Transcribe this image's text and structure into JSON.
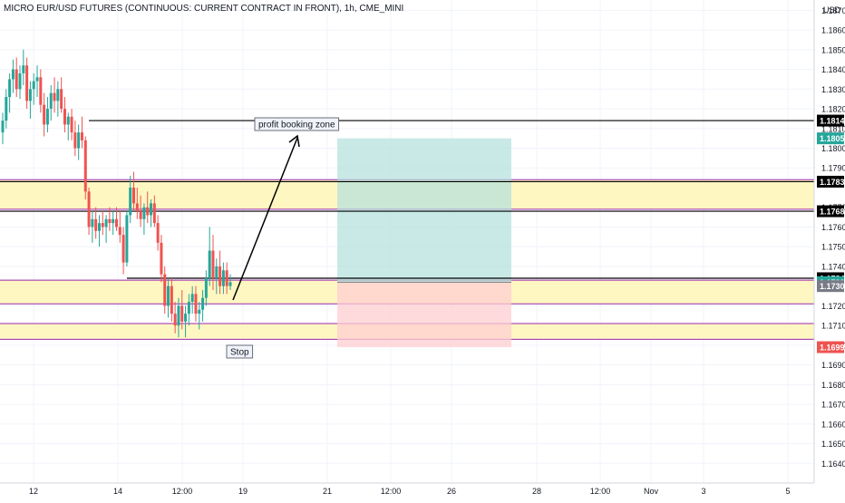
{
  "title": "MICRO EUR/USD FUTURES (CONTINUOUS: CURRENT CONTRACT IN FRONT), 1h, CME_MINI",
  "currency": "USD",
  "colors": {
    "up": "#26a69a",
    "down": "#ef5350",
    "zone_fill": "#fff7c2",
    "zone_border": "#9c27b0",
    "target_fill": "#b2dfdb",
    "stop_fill": "#ffcdd2",
    "grid": "#f0f3fa",
    "line": "#000000"
  },
  "annotations": {
    "profit_label": "profit booking zone",
    "stop_label": "Stop"
  },
  "chart_data": {
    "type": "candlestick",
    "title": "MICRO EUR/USD FUTURES (CONTINUOUS: CURRENT CONTRACT IN FRONT), 1h, CME_MINI",
    "ylim": [
      1.1636,
      1.1872
    ],
    "y_ticks": [
      1.164,
      1.165,
      1.166,
      1.167,
      1.168,
      1.169,
      1.17,
      1.171,
      1.172,
      1.174,
      1.175,
      1.176,
      1.177,
      1.179,
      1.18,
      1.181,
      1.182,
      1.183,
      1.184,
      1.185,
      1.186,
      1.187
    ],
    "x_ticks": [
      "12",
      "14",
      "12:00",
      "19",
      "21",
      "12:00",
      "26",
      "28",
      "12:00",
      "Nov",
      "3",
      "5"
    ],
    "horizontal_levels": [
      {
        "price": 1.1814,
        "label": "1.1814",
        "style": "dark"
      },
      {
        "price": 1.1783,
        "label": "1.1783",
        "style": "dark"
      },
      {
        "price": 1.1768,
        "label": "1.1768",
        "style": "dark"
      },
      {
        "price": 1.1734,
        "label": "1.1734",
        "style": "dark"
      }
    ],
    "zones": [
      {
        "top": 1.1784,
        "bottom": 1.1769
      },
      {
        "top": 1.1733,
        "bottom": 1.1721
      },
      {
        "top": 1.1711,
        "bottom": 1.1703
      }
    ],
    "position": {
      "entry": 1.1732,
      "target": 1.1805,
      "stop": 1.1699
    },
    "price_badges": [
      {
        "label": "1.1805",
        "color": "#26a69a"
      },
      {
        "label": "1.1732",
        "color": "#26a69a"
      },
      {
        "label": "1.1730",
        "color": "#787b86"
      },
      {
        "label": "1.1699",
        "color": "#ef5350"
      }
    ],
    "candles": [
      [
        1.1808,
        1.1818,
        1.1802,
        1.1814
      ],
      [
        1.1814,
        1.183,
        1.181,
        1.1826
      ],
      [
        1.1826,
        1.1838,
        1.1818,
        1.1835
      ],
      [
        1.1835,
        1.1845,
        1.1828,
        1.184
      ],
      [
        1.184,
        1.1846,
        1.1826,
        1.183
      ],
      [
        1.183,
        1.1842,
        1.1825,
        1.1838
      ],
      [
        1.1838,
        1.185,
        1.1832,
        1.1842
      ],
      [
        1.1842,
        1.1846,
        1.182,
        1.1824
      ],
      [
        1.1824,
        1.1834,
        1.1815,
        1.183
      ],
      [
        1.183,
        1.1838,
        1.1822,
        1.1834
      ],
      [
        1.1834,
        1.1842,
        1.1826,
        1.1836
      ],
      [
        1.1836,
        1.184,
        1.1818,
        1.1822
      ],
      [
        1.1822,
        1.1828,
        1.1806,
        1.1812
      ],
      [
        1.1812,
        1.1826,
        1.1808,
        1.182
      ],
      [
        1.182,
        1.1832,
        1.1814,
        1.1828
      ],
      [
        1.1828,
        1.1836,
        1.1818,
        1.1824
      ],
      [
        1.1824,
        1.1834,
        1.1816,
        1.183
      ],
      [
        1.183,
        1.1836,
        1.1818,
        1.182
      ],
      [
        1.182,
        1.1826,
        1.1808,
        1.1812
      ],
      [
        1.1812,
        1.1818,
        1.1804,
        1.1816
      ],
      [
        1.1816,
        1.182,
        1.1804,
        1.1808
      ],
      [
        1.1808,
        1.1814,
        1.1796,
        1.18
      ],
      [
        1.18,
        1.1812,
        1.1794,
        1.1808
      ],
      [
        1.1808,
        1.1816,
        1.18,
        1.1804
      ],
      [
        1.1804,
        1.1806,
        1.1774,
        1.1778
      ],
      [
        1.1778,
        1.178,
        1.1756,
        1.176
      ],
      [
        1.176,
        1.1768,
        1.1752,
        1.1764
      ],
      [
        1.1764,
        1.177,
        1.1754,
        1.1758
      ],
      [
        1.1758,
        1.1766,
        1.175,
        1.1762
      ],
      [
        1.1762,
        1.1768,
        1.1756,
        1.176
      ],
      [
        1.176,
        1.1766,
        1.1752,
        1.1764
      ],
      [
        1.1764,
        1.177,
        1.1758,
        1.1762
      ],
      [
        1.1762,
        1.1768,
        1.1756,
        1.1764
      ],
      [
        1.1764,
        1.177,
        1.1758,
        1.176
      ],
      [
        1.176,
        1.1768,
        1.1752,
        1.1756
      ],
      [
        1.1756,
        1.176,
        1.1736,
        1.1742
      ],
      [
        1.1742,
        1.1768,
        1.174,
        1.1766
      ],
      [
        1.1766,
        1.1786,
        1.1762,
        1.178
      ],
      [
        1.178,
        1.1788,
        1.1768,
        1.1772
      ],
      [
        1.1772,
        1.178,
        1.1764,
        1.1768
      ],
      [
        1.1768,
        1.1776,
        1.176,
        1.1764
      ],
      [
        1.1764,
        1.1772,
        1.1756,
        1.177
      ],
      [
        1.177,
        1.1778,
        1.1762,
        1.1766
      ],
      [
        1.1766,
        1.1774,
        1.176,
        1.1772
      ],
      [
        1.1772,
        1.1776,
        1.176,
        1.1762
      ],
      [
        1.1762,
        1.1766,
        1.1748,
        1.1752
      ],
      [
        1.1752,
        1.1756,
        1.1732,
        1.1736
      ],
      [
        1.1736,
        1.174,
        1.1716,
        1.172
      ],
      [
        1.172,
        1.1734,
        1.1714,
        1.173
      ],
      [
        1.173,
        1.1734,
        1.1712,
        1.1716
      ],
      [
        1.1716,
        1.1722,
        1.1706,
        1.171
      ],
      [
        1.171,
        1.1724,
        1.1704,
        1.172
      ],
      [
        1.172,
        1.1728,
        1.1708,
        1.1712
      ],
      [
        1.1712,
        1.172,
        1.1704,
        1.1716
      ],
      [
        1.1716,
        1.1726,
        1.171,
        1.1722
      ],
      [
        1.1722,
        1.173,
        1.1716,
        1.1726
      ],
      [
        1.1726,
        1.173,
        1.1712,
        1.1716
      ],
      [
        1.1716,
        1.1722,
        1.1708,
        1.1718
      ],
      [
        1.1718,
        1.1728,
        1.1712,
        1.1724
      ],
      [
        1.1724,
        1.1738,
        1.172,
        1.1734
      ],
      [
        1.1734,
        1.176,
        1.173,
        1.1748
      ],
      [
        1.1748,
        1.1756,
        1.1728,
        1.1734
      ],
      [
        1.1734,
        1.1744,
        1.1726,
        1.174
      ],
      [
        1.174,
        1.1748,
        1.1726,
        1.173
      ],
      [
        1.173,
        1.1742,
        1.1726,
        1.1738
      ],
      [
        1.1738,
        1.1742,
        1.1726,
        1.173
      ],
      [
        1.173,
        1.1736,
        1.1728,
        1.1732
      ]
    ]
  }
}
